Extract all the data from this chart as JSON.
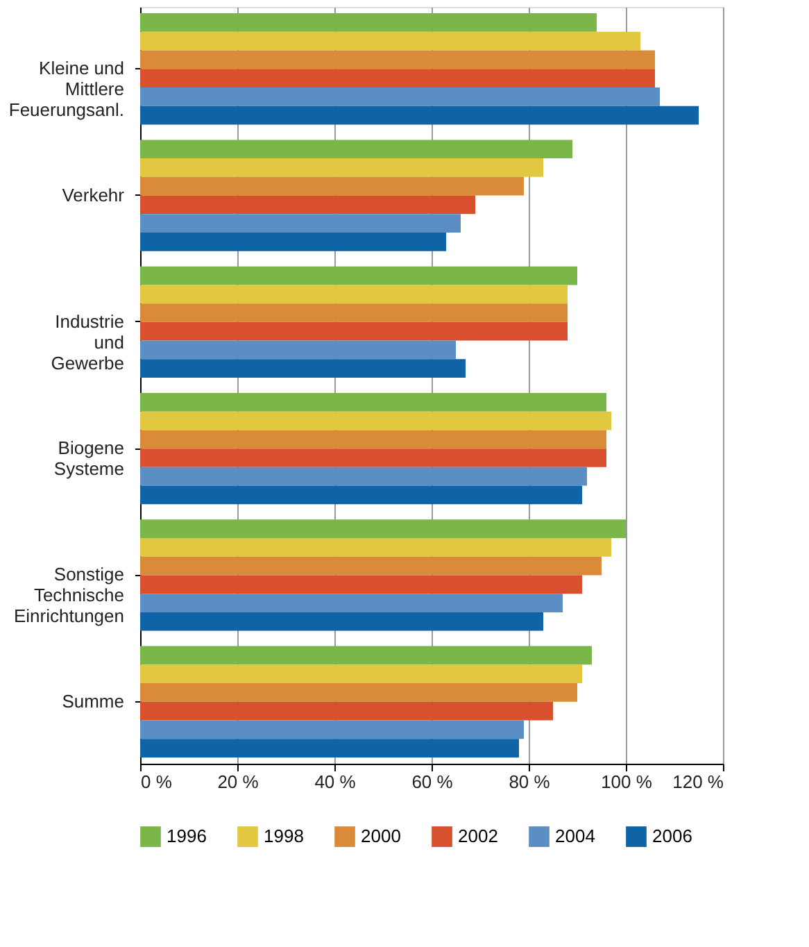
{
  "chart_data": {
    "type": "bar",
    "orientation": "horizontal",
    "categories": [
      "Kleine und\nMittlere\nFeuerungsanl.",
      "Verkehr",
      "Industrie\nund\nGewerbe",
      "Biogene\nSysteme",
      "Sonstige\nTechnische\nEinrichtungen",
      "Summe"
    ],
    "series": [
      {
        "name": "1996",
        "color": "#7ab648",
        "values": [
          94,
          89,
          90,
          96,
          100,
          93
        ]
      },
      {
        "name": "1998",
        "color": "#e2c840",
        "values": [
          103,
          83,
          88,
          97,
          97,
          91
        ]
      },
      {
        "name": "2000",
        "color": "#d98b3a",
        "values": [
          106,
          79,
          88,
          96,
          95,
          90
        ]
      },
      {
        "name": "2002",
        "color": "#d9502e",
        "values": [
          106,
          69,
          88,
          96,
          91,
          85
        ]
      },
      {
        "name": "2004",
        "color": "#5b8fc4",
        "values": [
          107,
          66,
          65,
          92,
          87,
          79
        ]
      },
      {
        "name": "2006",
        "color": "#0f64a8",
        "values": [
          115,
          63,
          67,
          91,
          83,
          78
        ]
      }
    ],
    "xlim": [
      0,
      120
    ],
    "xticks": [
      {
        "value": 0,
        "label": "0 %"
      },
      {
        "value": 20,
        "label": "20 %"
      },
      {
        "value": 40,
        "label": "40 %"
      },
      {
        "value": 60,
        "label": "60 %"
      },
      {
        "value": 80,
        "label": "80 %"
      },
      {
        "value": 100,
        "label": "100 %"
      },
      {
        "value": 120,
        "label": "120 %"
      }
    ],
    "grid": "x",
    "legend": "bottom"
  }
}
